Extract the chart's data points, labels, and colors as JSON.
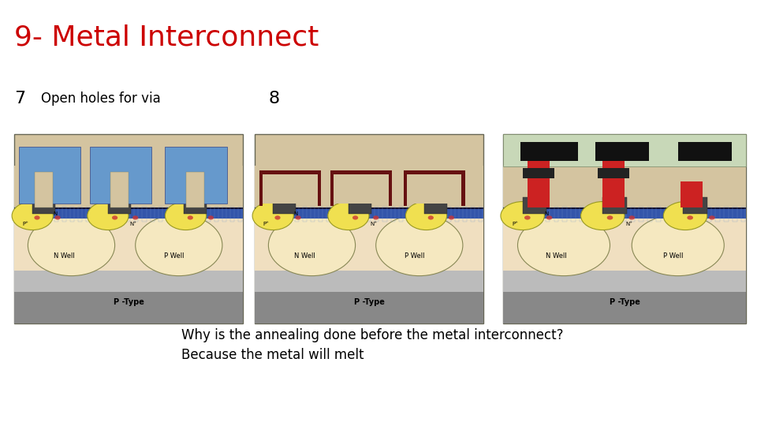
{
  "title": "9- Metal Interconnect",
  "title_color": "#cc0000",
  "title_fontsize": 26,
  "bg_color": "#ffffff",
  "label7": "7",
  "label7_desc": "Open holes for via",
  "label8": "8",
  "annotation_line1": "Why is the annealing done before the metal interconnect?",
  "annotation_line2": "Because the metal will melt",
  "chip_sand": "#d4c4a0",
  "chip_sand_light": "#ede0c8",
  "chip_blue_metal": "#5588cc",
  "chip_blue_dark": "#2244aa",
  "chip_yellow": "#f0e060",
  "chip_yellow_dark": "#c8b830",
  "chip_gray_bottom": "#aaaaaa",
  "chip_gray_bottom2": "#cccccc",
  "chip_dark": "#333333",
  "chip_black": "#111111",
  "chip_red": "#cc2222",
  "chip_red2": "#aa1111",
  "chip_green_top": "#c8d8b8",
  "chip_border": "#555544",
  "chip_white": "#ffffff",
  "chip_hatching_blue": "#4466aa",
  "chip_dark_blue_line": "#223366"
}
